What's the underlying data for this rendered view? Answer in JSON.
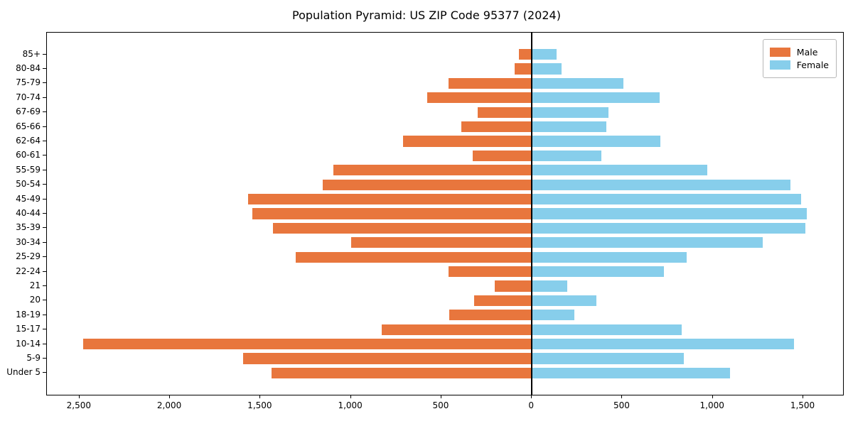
{
  "chart_data": {
    "type": "bar",
    "variant": "population-pyramid",
    "orientation": "horizontal",
    "title": "Population Pyramid: US ZIP Code 95377 (2024)",
    "xlabel": "",
    "ylabel": "",
    "categories_bottom_to_top": [
      "Under 5",
      "5-9",
      "10-14",
      "15-17",
      "18-19",
      "20",
      "21",
      "22-24",
      "25-29",
      "30-34",
      "35-39",
      "40-44",
      "45-49",
      "50-54",
      "55-59",
      "60-61",
      "62-64",
      "65-66",
      "67-69",
      "70-74",
      "75-79",
      "80-84",
      "85+"
    ],
    "series": [
      {
        "name": "Male",
        "side": "left",
        "color": "#e8763d",
        "values": [
          1440,
          1595,
          2480,
          830,
          455,
          320,
          205,
          460,
          1305,
          1000,
          1430,
          1545,
          1570,
          1155,
          1095,
          325,
          710,
          390,
          300,
          580,
          460,
          95,
          70
        ]
      },
      {
        "name": "Female",
        "side": "right",
        "color": "#87ceeb",
        "values": [
          1095,
          840,
          1450,
          830,
          235,
          355,
          195,
          730,
          855,
          1275,
          1510,
          1520,
          1490,
          1430,
          970,
          385,
          710,
          410,
          425,
          705,
          505,
          165,
          135
        ]
      }
    ],
    "xlim": [
      -2680,
      1720
    ],
    "ylim": [
      -1.5,
      23.5
    ],
    "x_ticks": [
      -2500,
      -2000,
      -1500,
      -1000,
      -500,
      0,
      500,
      1000,
      1500
    ],
    "x_tick_labels": [
      "2,500",
      "2,000",
      "1,500",
      "1,000",
      "500",
      "0",
      "500",
      "1,000",
      "1,500"
    ],
    "grid": false,
    "legend_position": "upper right",
    "zero_line": true,
    "axis_color": "#000000",
    "background_color": "#ffffff"
  }
}
